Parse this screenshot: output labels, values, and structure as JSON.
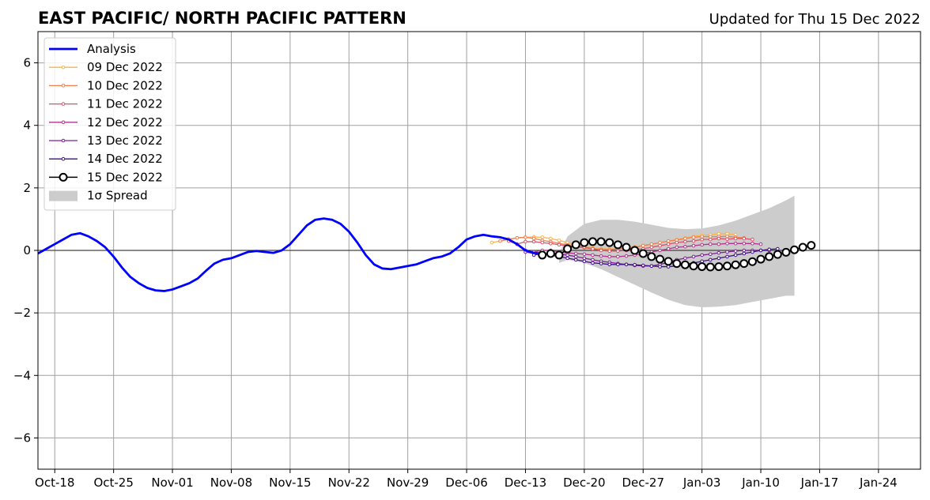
{
  "chart_data": {
    "type": "line",
    "title": "EAST PACIFIC/ NORTH PACIFIC PATTERN",
    "subtitle": "Updated for Thu 15 Dec 2022",
    "xlabel": "",
    "ylabel": "",
    "xlim": [
      "2022-10-16",
      "2023-01-29"
    ],
    "ylim": [
      -7,
      7
    ],
    "grid": true,
    "legend_position": "top-left",
    "x_ticks": [
      "2022-10-18",
      "2022-10-25",
      "2022-11-01",
      "2022-11-08",
      "2022-11-15",
      "2022-11-22",
      "2022-11-29",
      "2022-12-06",
      "2022-12-13",
      "2022-12-20",
      "2022-12-27",
      "2023-01-03",
      "2023-01-10",
      "2023-01-17",
      "2023-01-24"
    ],
    "x_tick_labels": [
      "Oct-18",
      "Oct-25",
      "Nov-01",
      "Nov-08",
      "Nov-15",
      "Nov-22",
      "Nov-29",
      "Dec-06",
      "Dec-13",
      "Dec-20",
      "Dec-27",
      "Jan-03",
      "Jan-10",
      "Jan-17",
      "Jan-24"
    ],
    "y_ticks": [
      -6,
      -4,
      -2,
      0,
      2,
      4,
      6
    ],
    "y_tick_labels": [
      "−6",
      "−4",
      "−2",
      "0",
      "2",
      "4",
      "6"
    ],
    "analysis": {
      "name": "Analysis",
      "color": "#0000ff",
      "x": [
        "2022-10-16",
        "2022-10-17",
        "2022-10-18",
        "2022-10-19",
        "2022-10-20",
        "2022-10-21",
        "2022-10-22",
        "2022-10-23",
        "2022-10-24",
        "2022-10-25",
        "2022-10-26",
        "2022-10-27",
        "2022-10-28",
        "2022-10-29",
        "2022-10-30",
        "2022-10-31",
        "2022-11-01",
        "2022-11-02",
        "2022-11-03",
        "2022-11-04",
        "2022-11-05",
        "2022-11-06",
        "2022-11-07",
        "2022-11-08",
        "2022-11-09",
        "2022-11-10",
        "2022-11-11",
        "2022-11-12",
        "2022-11-13",
        "2022-11-14",
        "2022-11-15",
        "2022-11-16",
        "2022-11-17",
        "2022-11-18",
        "2022-11-19",
        "2022-11-20",
        "2022-11-21",
        "2022-11-22",
        "2022-11-23",
        "2022-11-24",
        "2022-11-25",
        "2022-11-26",
        "2022-11-27",
        "2022-11-28",
        "2022-11-29",
        "2022-11-30",
        "2022-12-01",
        "2022-12-02",
        "2022-12-03",
        "2022-12-04",
        "2022-12-05",
        "2022-12-06",
        "2022-12-07",
        "2022-12-08",
        "2022-12-09",
        "2022-12-10",
        "2022-12-11",
        "2022-12-12",
        "2022-12-13",
        "2022-12-14",
        "2022-12-15"
      ],
      "y": [
        -0.1,
        0.05,
        0.2,
        0.35,
        0.5,
        0.55,
        0.45,
        0.3,
        0.1,
        -0.2,
        -0.55,
        -0.85,
        -1.05,
        -1.2,
        -1.28,
        -1.3,
        -1.25,
        -1.15,
        -1.05,
        -0.9,
        -0.65,
        -0.42,
        -0.3,
        -0.25,
        -0.15,
        -0.05,
        -0.02,
        -0.05,
        -0.08,
        0.0,
        0.2,
        0.5,
        0.8,
        0.98,
        1.02,
        0.98,
        0.85,
        0.6,
        0.25,
        -0.15,
        -0.45,
        -0.58,
        -0.6,
        -0.55,
        -0.5,
        -0.45,
        -0.35,
        -0.25,
        -0.2,
        -0.1,
        0.1,
        0.35,
        0.45,
        0.5,
        0.45,
        0.42,
        0.35,
        0.2,
        0.0,
        -0.08,
        -0.1
      ]
    },
    "forecasts": [
      {
        "name": "09 Dec 2022",
        "color": "#f9b44a",
        "start": "2022-12-09",
        "y": [
          0.25,
          0.3,
          0.35,
          0.4,
          0.42,
          0.43,
          0.42,
          0.38,
          0.32,
          0.25,
          0.18,
          0.12,
          0.08,
          0.05,
          0.05,
          0.05,
          0.08,
          0.12,
          0.16,
          0.2,
          0.25,
          0.3,
          0.35,
          0.4,
          0.45,
          0.48,
          0.5,
          0.53,
          0.53,
          0.5
        ]
      },
      {
        "name": "10 Dec 2022",
        "color": "#ef7f4f",
        "start": "2022-12-10",
        "y": [
          0.3,
          0.36,
          0.4,
          0.42,
          0.38,
          0.32,
          0.28,
          0.22,
          0.18,
          0.12,
          0.08,
          0.05,
          0.03,
          0.02,
          0.05,
          0.08,
          0.1,
          0.15,
          0.2,
          0.25,
          0.3,
          0.33,
          0.38,
          0.42,
          0.44,
          0.44,
          0.44,
          0.45,
          0.42,
          0.4
        ]
      },
      {
        "name": "11 Dec 2022",
        "color": "#d85369",
        "start": "2022-12-11",
        "y": [
          0.3,
          0.2,
          0.28,
          0.28,
          0.25,
          0.22,
          0.18,
          0.15,
          0.12,
          0.1,
          0.05,
          0.0,
          -0.02,
          -0.02,
          0.0,
          0.03,
          0.05,
          0.1,
          0.15,
          0.2,
          0.25,
          0.28,
          0.3,
          0.35,
          0.35,
          0.38,
          0.36,
          0.38,
          0.38,
          0.35
        ]
      },
      {
        "name": "12 Dec 2022",
        "color": "#b1348b",
        "start": "2022-12-12",
        "y": [
          0.2,
          0.0,
          -0.05,
          0.0,
          0.0,
          -0.05,
          -0.08,
          -0.1,
          -0.12,
          -0.15,
          -0.18,
          -0.2,
          -0.2,
          -0.18,
          -0.15,
          -0.1,
          -0.05,
          0.0,
          0.05,
          0.1,
          0.12,
          0.15,
          0.18,
          0.2,
          0.2,
          0.22,
          0.22,
          0.22,
          0.22,
          0.2
        ]
      },
      {
        "name": "13 Dec 2022",
        "color": "#7d1e97",
        "start": "2022-12-13",
        "y": [
          -0.05,
          -0.1,
          -0.12,
          -0.1,
          -0.12,
          -0.15,
          -0.2,
          -0.25,
          -0.3,
          -0.35,
          -0.38,
          -0.42,
          -0.45,
          -0.48,
          -0.5,
          -0.5,
          -0.45,
          -0.38,
          -0.3,
          -0.25,
          -0.2,
          -0.15,
          -0.12,
          -0.08,
          -0.05,
          -0.02,
          0.0,
          0.0,
          0.0,
          0.0
        ]
      },
      {
        "name": "14 Dec 2022",
        "color": "#3f0c8a",
        "start": "2022-12-14",
        "y": [
          -0.15,
          -0.1,
          -0.15,
          -0.2,
          -0.25,
          -0.3,
          -0.35,
          -0.4,
          -0.42,
          -0.45,
          -0.45,
          -0.45,
          -0.46,
          -0.48,
          -0.5,
          -0.52,
          -0.52,
          -0.5,
          -0.45,
          -0.4,
          -0.35,
          -0.3,
          -0.25,
          -0.2,
          -0.15,
          -0.1,
          -0.05,
          0.0,
          0.03,
          0.05
        ]
      },
      {
        "name": "15 Dec 2022",
        "color": "#000000",
        "start": "2022-12-15",
        "y": [
          -0.15,
          -0.1,
          -0.15,
          0.05,
          0.18,
          0.25,
          0.28,
          0.28,
          0.25,
          0.18,
          0.1,
          0.0,
          -0.1,
          -0.2,
          -0.28,
          -0.35,
          -0.42,
          -0.46,
          -0.5,
          -0.52,
          -0.53,
          -0.52,
          -0.5,
          -0.46,
          -0.42,
          -0.36,
          -0.28,
          -0.2,
          -0.13,
          -0.06,
          0.02,
          0.1,
          0.16
        ]
      }
    ],
    "spread": {
      "name": "1σ Spread",
      "color": "#cccccc",
      "x": [
        "2022-12-17",
        "2022-12-18",
        "2022-12-20",
        "2022-12-22",
        "2022-12-24",
        "2022-12-26",
        "2022-12-28",
        "2022-12-30",
        "2023-01-01",
        "2023-01-03",
        "2023-01-05",
        "2023-01-07",
        "2023-01-09",
        "2023-01-11",
        "2023-01-13",
        "2023-01-14"
      ],
      "upper": [
        -0.1,
        0.45,
        0.85,
        0.98,
        0.98,
        0.92,
        0.82,
        0.72,
        0.68,
        0.7,
        0.8,
        0.95,
        1.15,
        1.35,
        1.6,
        1.75
      ],
      "lower": [
        -0.4,
        -0.3,
        -0.4,
        -0.6,
        -0.85,
        -1.1,
        -1.35,
        -1.58,
        -1.75,
        -1.82,
        -1.8,
        -1.75,
        -1.65,
        -1.55,
        -1.45,
        -1.45
      ]
    }
  }
}
